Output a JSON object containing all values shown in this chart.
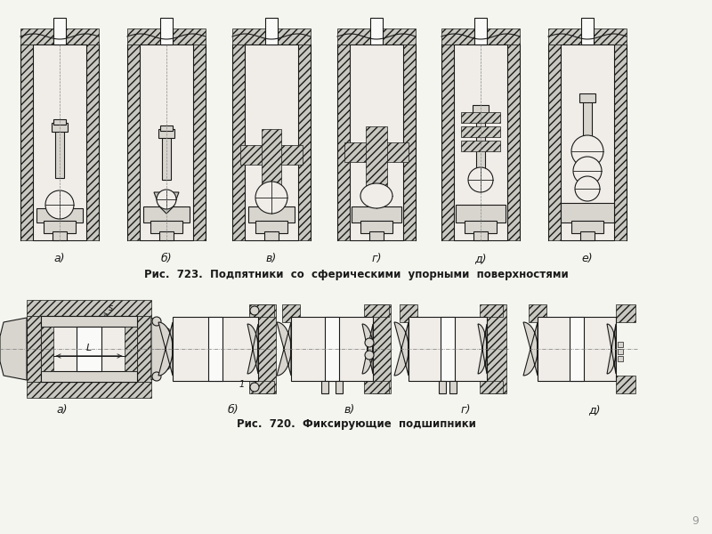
{
  "bg_color": "#f5f5f0",
  "page_number": "9",
  "fig723_caption": "Рис.  723.  Подпятники  со  сферическими  упорными  поверхностями",
  "fig720_caption": "Рис.  720.  Фиксирующие  подшипники",
  "fig723_labels": [
    "а)",
    "б)",
    "в)",
    "г)",
    "д)",
    "е)"
  ],
  "fig720_labels": [
    "а)",
    "б)",
    "в)",
    "г)",
    "д)"
  ],
  "lc": "#1a1a1a",
  "hatch_fc": "#c8c8c0",
  "inner_fc": "#f0ede8",
  "metal_fc": "#d8d5ce",
  "white_fc": "#fafaf8"
}
